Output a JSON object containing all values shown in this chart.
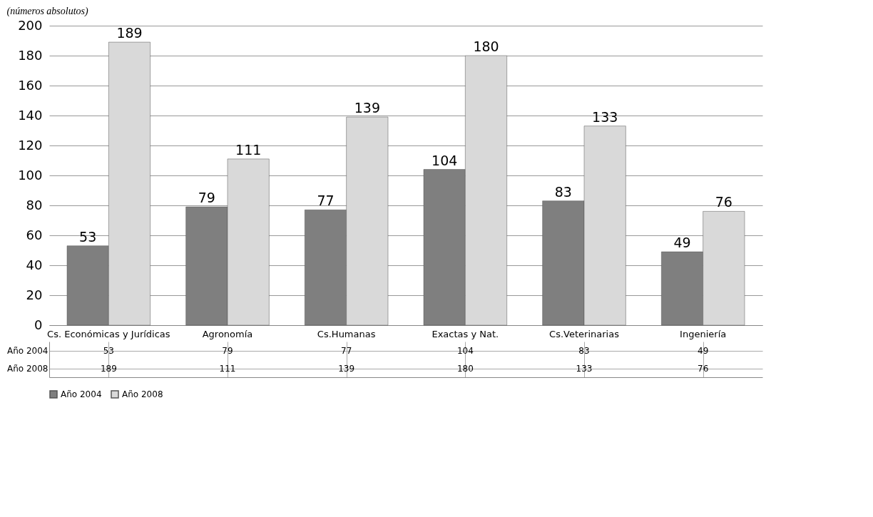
{
  "chart_data": {
    "type": "bar",
    "subtitle": "(números absolutos)",
    "categories": [
      "Cs. Económicas y Jurídicas",
      "Agronomía",
      "Cs.Humanas",
      "Exactas y Nat.",
      "Cs.Veterinarias",
      "Ingeniería"
    ],
    "series": [
      {
        "name": "Año 2004",
        "color": "#7f7f7f",
        "values": [
          53,
          79,
          77,
          104,
          83,
          49
        ],
        "value_labels": [
          "53",
          "79",
          "77",
          "104",
          "83",
          "49"
        ]
      },
      {
        "name": "Año 2008",
        "color": "#d9d9d9",
        "values": [
          189,
          111,
          139,
          180,
          133,
          76
        ],
        "value_labels": [
          "189",
          "111",
          "139",
          "180",
          "133",
          "76"
        ]
      }
    ],
    "annotations": [
      "53",
      "79",
      "77",
      "104",
      "83",
      "49",
      "189",
      "111",
      "139",
      "180",
      "133",
      "76"
    ],
    "ylim": [
      0,
      200
    ],
    "yticks": [
      0,
      20,
      40,
      60,
      80,
      100,
      120,
      140,
      160,
      180,
      200
    ],
    "grid": "y",
    "legend": "bottom"
  }
}
